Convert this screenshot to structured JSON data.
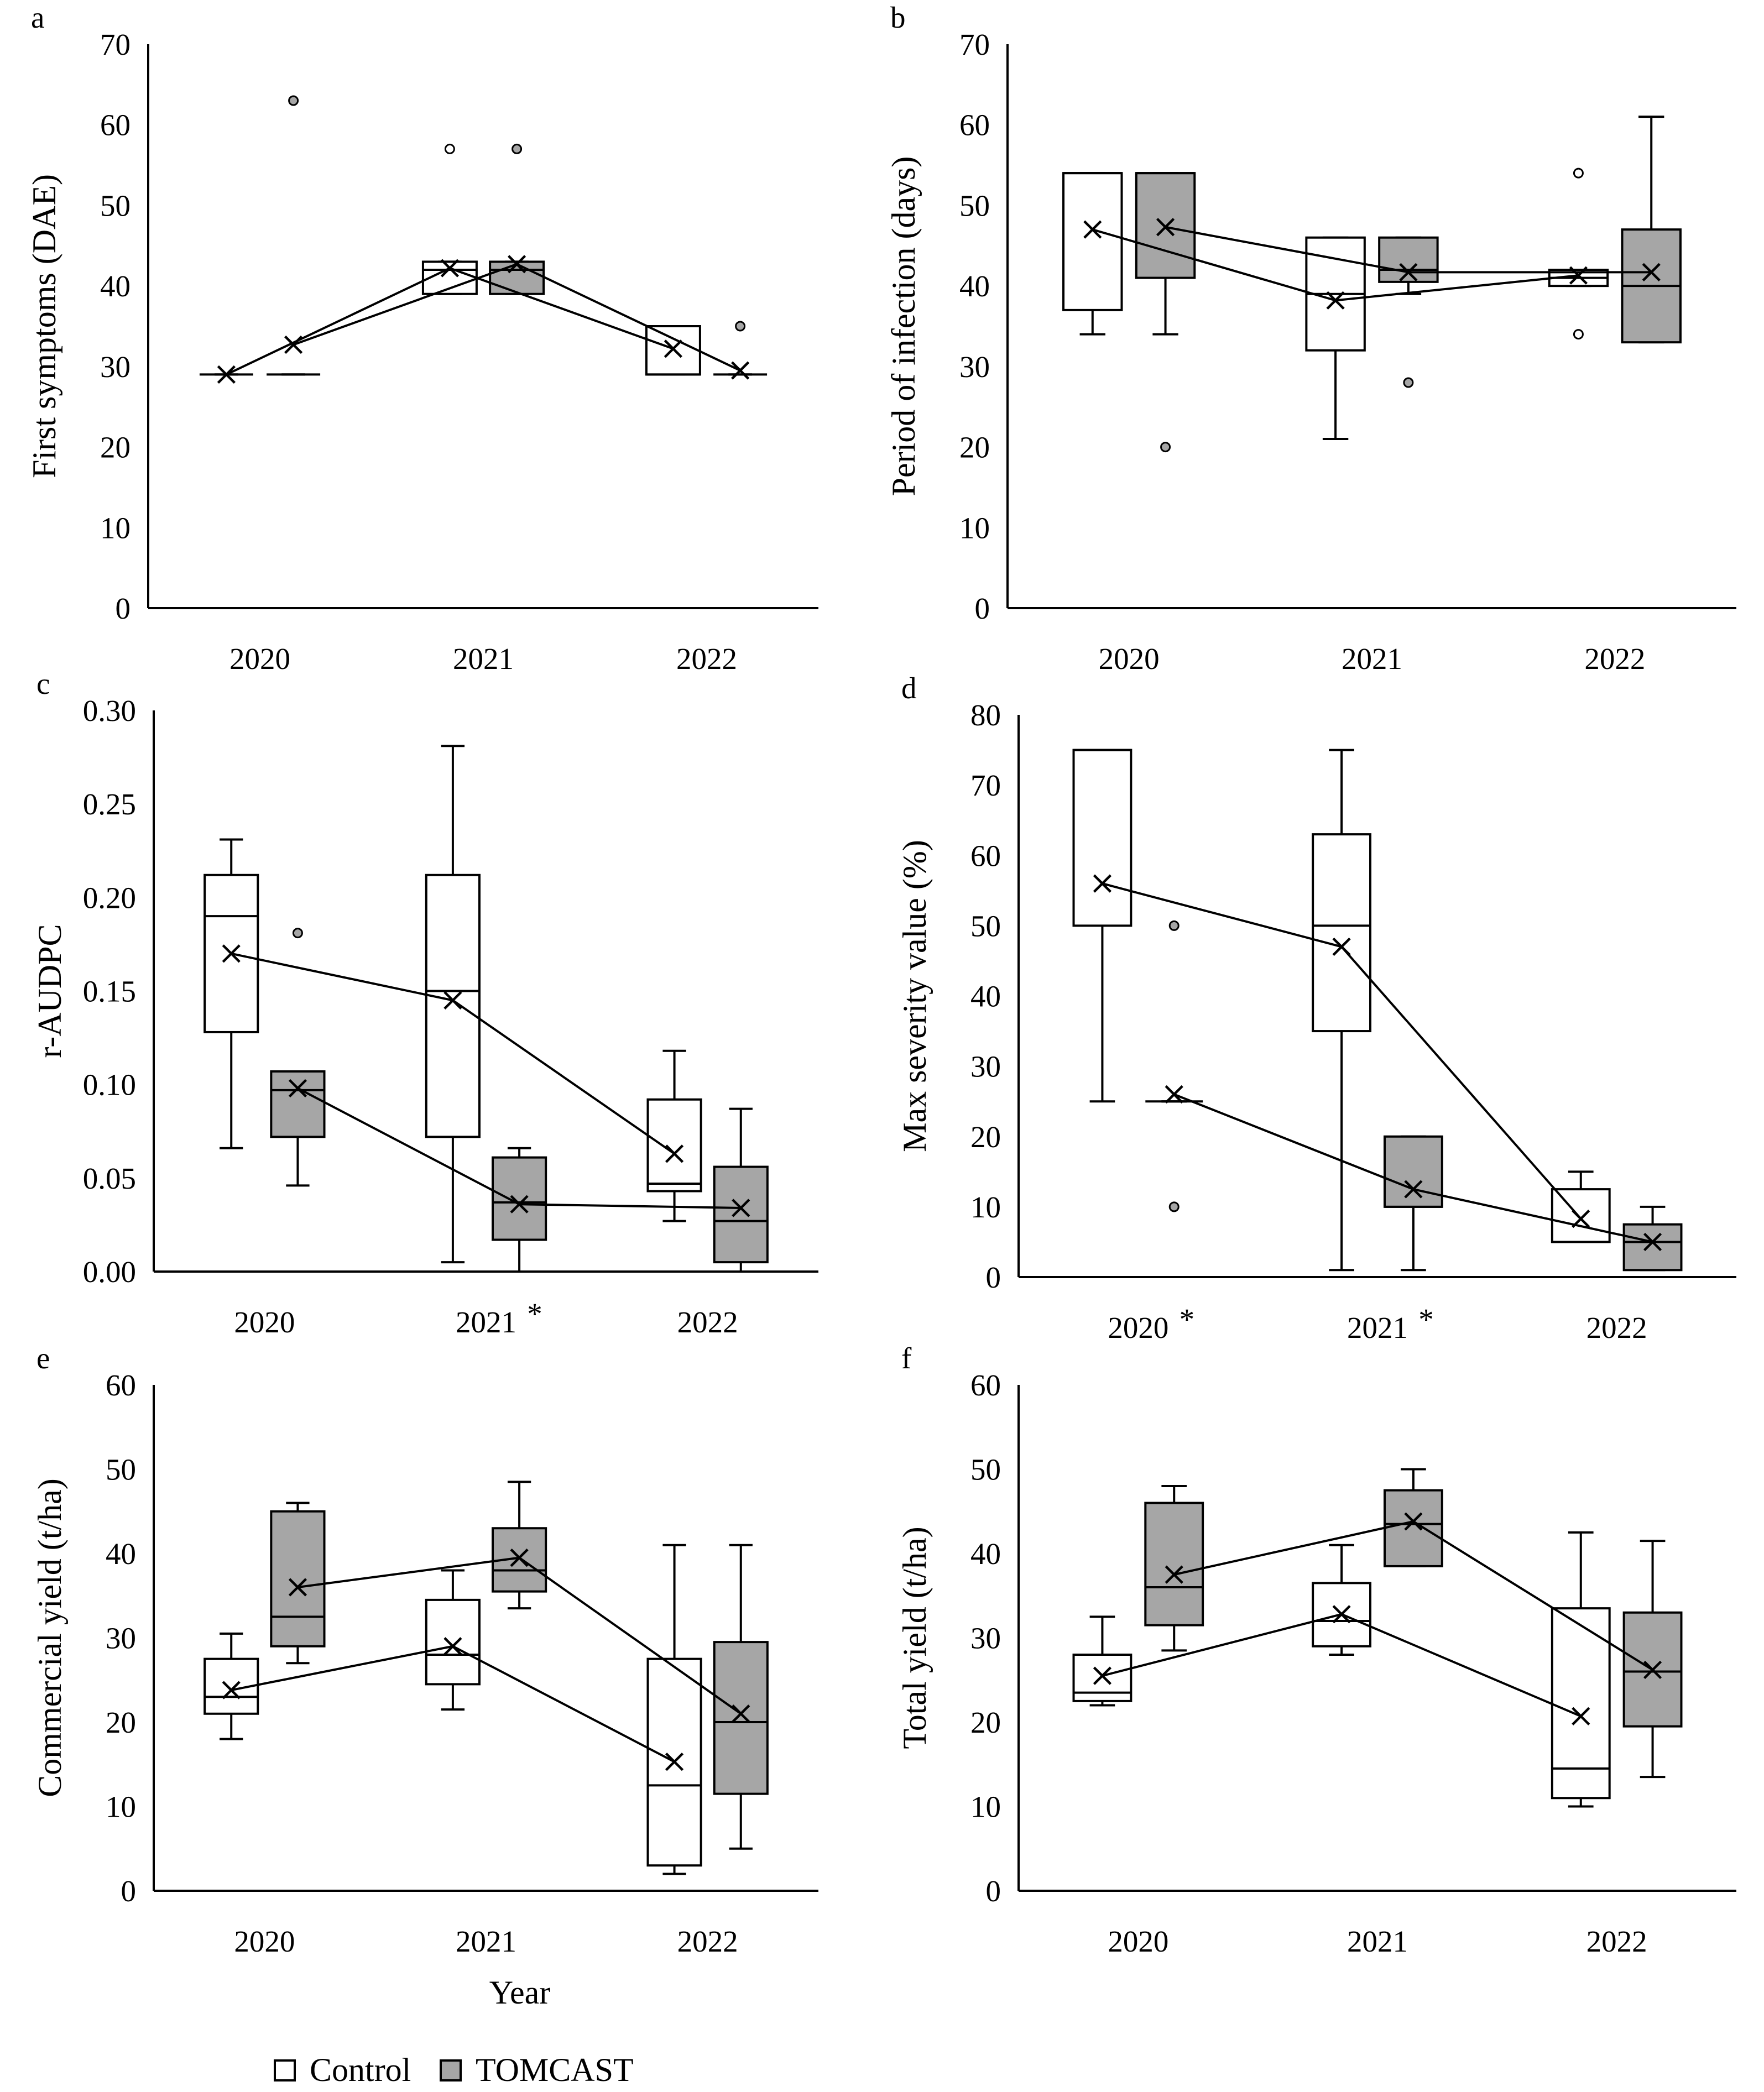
{
  "figure": {
    "xlabel": "Year",
    "legend": [
      {
        "name": "Control",
        "color": "#ffffff"
      },
      {
        "name": "TOMCAST",
        "color": "#a6a6a6"
      }
    ]
  },
  "chart_data": [
    {
      "type": "box",
      "panel": "a",
      "ylabel": "First symptoms (DAE)",
      "ylim": [
        0,
        70
      ],
      "yticks": [
        "0",
        "10",
        "20",
        "30",
        "40",
        "50",
        "60",
        "70"
      ],
      "categories": [
        "2020",
        "2021",
        "2022"
      ],
      "series": [
        {
          "name": "Control",
          "boxes": [
            {
              "q1": 29,
              "median": 29,
              "q3": 29,
              "wlo": 29,
              "whi": 29,
              "mean": 29,
              "outliers": []
            },
            {
              "q1": 39,
              "median": 42,
              "q3": 43,
              "wlo": 39,
              "whi": 43,
              "mean": 42.2,
              "outliers": [
                57
              ]
            },
            {
              "q1": 29,
              "median": 29,
              "q3": 35,
              "wlo": 29,
              "whi": 35,
              "mean": 32.2,
              "outliers": []
            }
          ]
        },
        {
          "name": "TOMCAST",
          "boxes": [
            {
              "q1": 29,
              "median": 29,
              "q3": 29,
              "wlo": 29,
              "whi": 29,
              "mean": 32.7,
              "outliers": [
                63
              ]
            },
            {
              "q1": 39,
              "median": 42,
              "q3": 43,
              "wlo": 39,
              "whi": 43,
              "mean": 42.7,
              "outliers": [
                57
              ]
            },
            {
              "q1": 29,
              "median": 29,
              "q3": 29,
              "wlo": 29,
              "whi": 29,
              "mean": 29.5,
              "outliers": [
                35
              ]
            }
          ]
        }
      ]
    },
    {
      "type": "box",
      "panel": "b",
      "ylabel": "Period of infection (days)",
      "ylim": [
        0,
        70
      ],
      "yticks": [
        "0",
        "10",
        "20",
        "30",
        "40",
        "50",
        "60",
        "70"
      ],
      "categories": [
        "2020",
        "2021",
        "2022"
      ],
      "series": [
        {
          "name": "Control",
          "boxes": [
            {
              "q1": 37,
              "median": 54,
              "q3": 54,
              "wlo": 34,
              "whi": 54,
              "mean": 47,
              "outliers": []
            },
            {
              "q1": 32,
              "median": 39,
              "q3": 46,
              "wlo": 21,
              "whi": 46,
              "mean": 38.2,
              "outliers": []
            },
            {
              "q1": 40,
              "median": 41,
              "q3": 42,
              "wlo": 40,
              "whi": 42,
              "mean": 41.3,
              "outliers": [
                54,
                34
              ]
            }
          ]
        },
        {
          "name": "TOMCAST",
          "boxes": [
            {
              "q1": 41,
              "median": 54,
              "q3": 54,
              "wlo": 34,
              "whi": 54,
              "mean": 47.3,
              "outliers": [
                20
              ]
            },
            {
              "q1": 40.5,
              "median": 42,
              "q3": 46,
              "wlo": 39,
              "whi": 46,
              "mean": 41.7,
              "outliers": [
                28
              ]
            },
            {
              "q1": 33,
              "median": 40,
              "q3": 47,
              "wlo": 33,
              "whi": 61,
              "mean": 41.7,
              "outliers": []
            }
          ]
        }
      ]
    },
    {
      "type": "box",
      "panel": "c",
      "ylabel": "r-AUDPC",
      "ylim": [
        0,
        0.3
      ],
      "yticks": [
        "0.00",
        "0.05",
        "0.10",
        "0.15",
        "0.20",
        "0.25",
        "0.30"
      ],
      "categories": [
        "2020",
        "2021",
        "2022"
      ],
      "category_marks": [
        "",
        "*",
        ""
      ],
      "series": [
        {
          "name": "Control",
          "boxes": [
            {
              "q1": 0.128,
              "median": 0.19,
              "q3": 0.212,
              "wlo": 0.066,
              "whi": 0.231,
              "mean": 0.17,
              "outliers": []
            },
            {
              "q1": 0.072,
              "median": 0.15,
              "q3": 0.212,
              "wlo": 0.005,
              "whi": 0.281,
              "mean": 0.145,
              "outliers": []
            },
            {
              "q1": 0.043,
              "median": 0.047,
              "q3": 0.092,
              "wlo": 0.027,
              "whi": 0.118,
              "mean": 0.063,
              "outliers": []
            }
          ]
        },
        {
          "name": "TOMCAST",
          "boxes": [
            {
              "q1": 0.072,
              "median": 0.097,
              "q3": 0.107,
              "wlo": 0.046,
              "whi": 0.107,
              "mean": 0.098,
              "outliers": [
                0.181
              ]
            },
            {
              "q1": 0.017,
              "median": 0.037,
              "q3": 0.061,
              "wlo": 0.0,
              "whi": 0.066,
              "mean": 0.036,
              "outliers": []
            },
            {
              "q1": 0.005,
              "median": 0.027,
              "q3": 0.056,
              "wlo": 0.0,
              "whi": 0.087,
              "mean": 0.034,
              "outliers": []
            }
          ]
        }
      ]
    },
    {
      "type": "box",
      "panel": "d",
      "ylabel": "Max severity value (%)",
      "ylim": [
        0,
        80
      ],
      "yticks": [
        "0",
        "10",
        "20",
        "30",
        "40",
        "50",
        "60",
        "70",
        "80"
      ],
      "categories": [
        "2020",
        "2021",
        "2022"
      ],
      "category_marks": [
        "*",
        "*",
        ""
      ],
      "series": [
        {
          "name": "Control",
          "boxes": [
            {
              "q1": 50,
              "median": 75,
              "q3": 75,
              "wlo": 25,
              "whi": 75,
              "mean": 56,
              "outliers": []
            },
            {
              "q1": 35,
              "median": 50,
              "q3": 63,
              "wlo": 1,
              "whi": 75,
              "mean": 47,
              "outliers": []
            },
            {
              "q1": 5,
              "median": 5,
              "q3": 12.5,
              "wlo": 5,
              "whi": 15,
              "mean": 8.3,
              "outliers": []
            }
          ]
        },
        {
          "name": "TOMCAST",
          "boxes": [
            {
              "q1": 25,
              "median": 25,
              "q3": 25,
              "wlo": 25,
              "whi": 25,
              "mean": 26,
              "outliers": [
                50,
                10
              ]
            },
            {
              "q1": 10,
              "median": 10,
              "q3": 20,
              "wlo": 1,
              "whi": 20,
              "mean": 12.5,
              "outliers": []
            },
            {
              "q1": 1,
              "median": 5,
              "q3": 7.5,
              "wlo": 1,
              "whi": 10,
              "mean": 5,
              "outliers": []
            }
          ]
        }
      ]
    },
    {
      "type": "box",
      "panel": "e",
      "ylabel": "Commercial yield (t/ha)",
      "ylim": [
        0,
        60
      ],
      "yticks": [
        "0",
        "10",
        "20",
        "30",
        "40",
        "50",
        "60"
      ],
      "categories": [
        "2020",
        "2021",
        "2022"
      ],
      "series": [
        {
          "name": "Control",
          "boxes": [
            {
              "q1": 21,
              "median": 23,
              "q3": 27.5,
              "wlo": 18,
              "whi": 30.5,
              "mean": 23.8,
              "outliers": []
            },
            {
              "q1": 24.5,
              "median": 28,
              "q3": 34.5,
              "wlo": 21.5,
              "whi": 38,
              "mean": 29,
              "outliers": []
            },
            {
              "q1": 3,
              "median": 12.5,
              "q3": 27.5,
              "wlo": 2,
              "whi": 41,
              "mean": 15.3,
              "outliers": []
            }
          ]
        },
        {
          "name": "TOMCAST",
          "boxes": [
            {
              "q1": 29,
              "median": 32.5,
              "q3": 45,
              "wlo": 27,
              "whi": 46,
              "mean": 36,
              "outliers": []
            },
            {
              "q1": 35.5,
              "median": 38,
              "q3": 43,
              "wlo": 33.5,
              "whi": 48.5,
              "mean": 39.5,
              "outliers": []
            },
            {
              "q1": 11.5,
              "median": 20,
              "q3": 29.5,
              "wlo": 5,
              "whi": 41,
              "mean": 21,
              "outliers": []
            }
          ]
        }
      ]
    },
    {
      "type": "box",
      "panel": "f",
      "ylabel": "Total yield (t/ha)",
      "ylim": [
        0,
        60
      ],
      "yticks": [
        "0",
        "10",
        "20",
        "30",
        "40",
        "50",
        "60"
      ],
      "categories": [
        "2020",
        "2021",
        "2022"
      ],
      "series": [
        {
          "name": "Control",
          "boxes": [
            {
              "q1": 22.5,
              "median": 23.5,
              "q3": 28,
              "wlo": 22,
              "whi": 32.5,
              "mean": 25.5,
              "outliers": []
            },
            {
              "q1": 29,
              "median": 32,
              "q3": 36.5,
              "wlo": 28,
              "whi": 41,
              "mean": 32.8,
              "outliers": []
            },
            {
              "q1": 11,
              "median": 14.5,
              "q3": 33.5,
              "wlo": 10,
              "whi": 42.5,
              "mean": 20.7,
              "outliers": []
            }
          ]
        },
        {
          "name": "TOMCAST",
          "boxes": [
            {
              "q1": 31.5,
              "median": 36,
              "q3": 46,
              "wlo": 28.5,
              "whi": 48,
              "mean": 37.5,
              "outliers": []
            },
            {
              "q1": 38.5,
              "median": 43.5,
              "q3": 47.5,
              "wlo": 38.5,
              "whi": 50,
              "mean": 43.8,
              "outliers": []
            },
            {
              "q1": 19.5,
              "median": 26,
              "q3": 33,
              "wlo": 13.5,
              "whi": 41.5,
              "mean": 26.2,
              "outliers": []
            }
          ]
        }
      ]
    }
  ]
}
